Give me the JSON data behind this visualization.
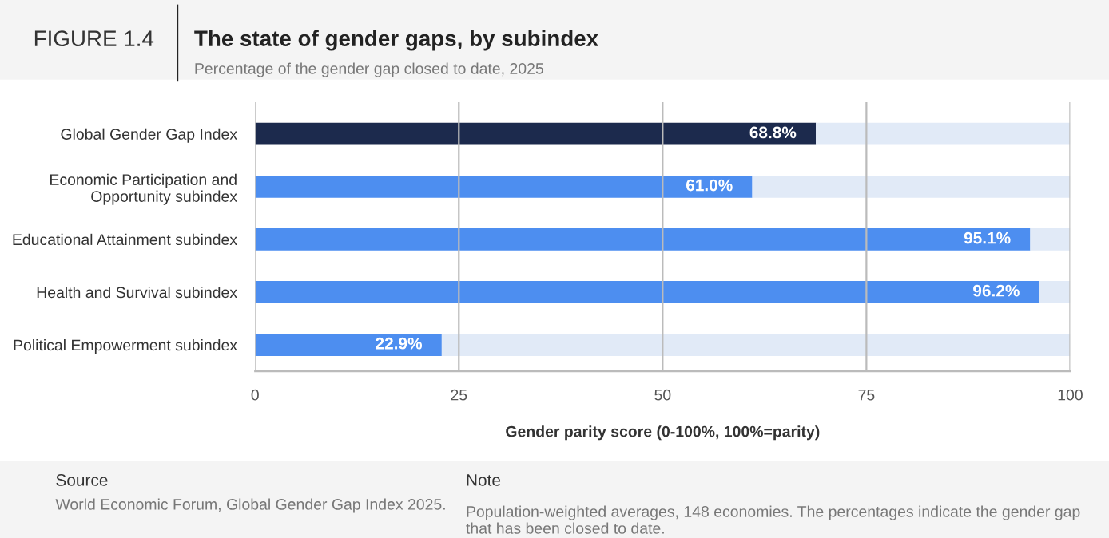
{
  "chart_data": {
    "type": "bar",
    "orientation": "horizontal",
    "stacked": true,
    "title": "The state of gender gaps, by subindex",
    "subtitle": "Percentage of the gender gap closed to date, 2025",
    "xlabel": "Gender parity score (0-100%, 100%=parity)",
    "categories": [
      "Global Gender Gap Index",
      "Economic Participation and\nOpportunity subindex",
      "Educational Attainment subindex",
      "Health and Survival subindex",
      "Political Empowerment subindex"
    ],
    "series": [
      {
        "colors": [
          "#1c2a4d",
          "#4d8ef0",
          "#4d8ef0",
          "#4d8ef0",
          "#4d8ef0"
        ],
        "values": [
          68.8,
          61.0,
          95.1,
          96.2,
          22.9
        ],
        "value_labels": [
          "68.8%",
          "61.0%",
          "95.1%",
          "96.2%",
          "22.9%"
        ]
      },
      {
        "color": "#e1eaf7",
        "values": [
          31.2,
          39.0,
          4.9,
          3.8,
          77.1
        ]
      }
    ],
    "xlim": [
      0,
      100
    ],
    "xticks": [
      0,
      25,
      50,
      75,
      100
    ],
    "grid": "x",
    "legend": false,
    "annotations": [
      "FIGURE 1.4",
      "Source",
      "World Economic Forum, Global Gender Gap Index 2025.",
      "Note",
      "Population-weighted averages, 148 economies. The percentages indicate the gender gap that has been closed to date."
    ]
  }
}
